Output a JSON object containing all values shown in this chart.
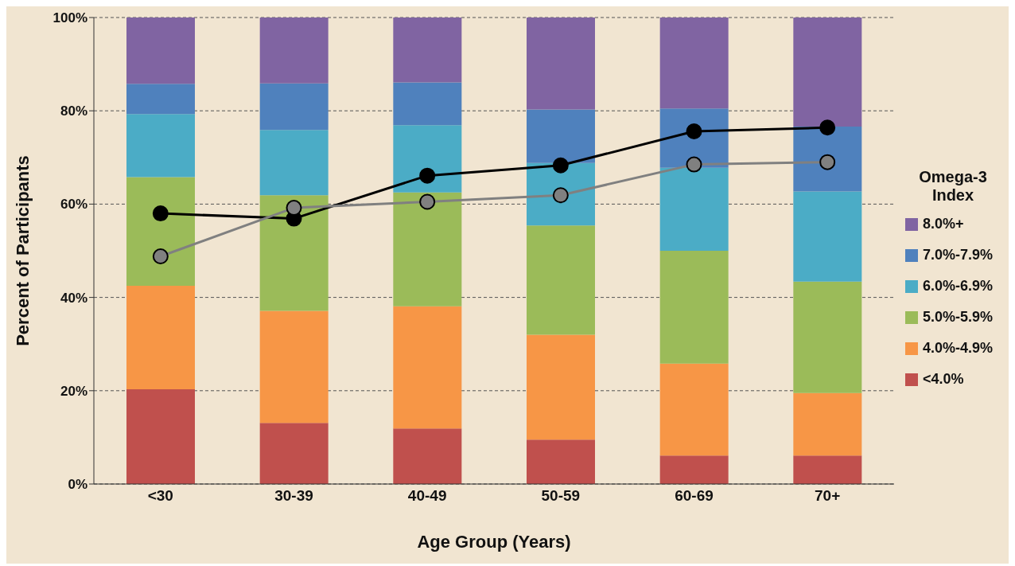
{
  "chart_data": {
    "type": "bar",
    "stacked": true,
    "xlabel": "Age Group (Years)",
    "ylabel": "Percent of Participants",
    "legend_title": "Omega-3\nIndex",
    "legend": "right",
    "categories": [
      "<30",
      "30-39",
      "40-49",
      "50-59",
      "60-69",
      "70+"
    ],
    "ylim": [
      0,
      100
    ],
    "yticks": [
      {
        "value": 0,
        "label": "0%"
      },
      {
        "value": 20,
        "label": "20%"
      },
      {
        "value": 40,
        "label": "40%"
      },
      {
        "value": 60,
        "label": "60%"
      },
      {
        "value": 80,
        "label": "80%"
      },
      {
        "value": 100,
        "label": "100%"
      }
    ],
    "grid": "y",
    "marker": "circle",
    "series": [
      {
        "name": "<4.0%",
        "color": "#c0504d",
        "values": [
          20.3,
          13.1,
          11.9,
          9.5,
          6.1,
          6.1
        ]
      },
      {
        "name": "4.0%-4.9%",
        "color": "#f79646",
        "values": [
          22.2,
          24.0,
          26.2,
          22.5,
          19.7,
          13.4
        ]
      },
      {
        "name": "5.0%-5.9%",
        "color": "#9bbb59",
        "values": [
          23.3,
          24.8,
          24.4,
          23.4,
          24.2,
          23.9
        ]
      },
      {
        "name": "6.0%-6.9%",
        "color": "#4bacc6",
        "values": [
          13.5,
          14.0,
          14.4,
          13.4,
          17.8,
          19.3
        ]
      },
      {
        "name": "7.0%-7.9%",
        "color": "#4f81bd",
        "values": [
          6.5,
          10.0,
          9.2,
          11.5,
          12.7,
          13.9
        ]
      },
      {
        "name": "8.0%+",
        "color": "#8064a2",
        "values": [
          14.2,
          14.1,
          13.9,
          19.7,
          19.5,
          23.4
        ]
      },
      {
        "type": "line",
        "color": "#000000",
        "values": [
          58.0,
          56.9,
          66.1,
          68.3,
          75.6,
          76.4
        ]
      },
      {
        "type": "line",
        "color": "#808080",
        "values": [
          48.8,
          59.2,
          60.5,
          61.9,
          68.5,
          69.0
        ]
      }
    ]
  }
}
